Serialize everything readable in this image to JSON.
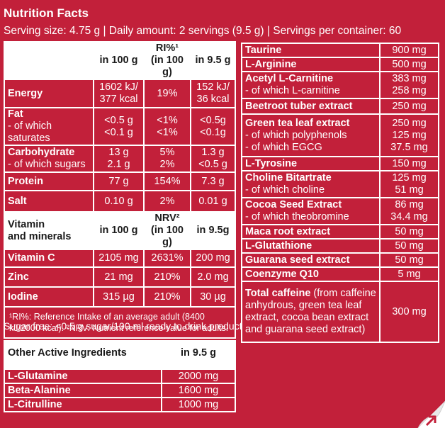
{
  "header": {
    "title": "Nutrition Facts",
    "serving": "Serving size: 4.75 g  |  Daily amount: 2 servings (9.5 g)  |  Servings per container: 60"
  },
  "nutrition": {
    "col_100g": "in 100 g",
    "col_ri": "RI%¹",
    "col_ri_sub": "(in 100 g)",
    "col_95g": "in 9.5 g",
    "rows": [
      {
        "label": "Energy",
        "v100": "1602 kJ/",
        "v100b": "377 kcal",
        "ri": "19%",
        "v95": "152 kJ/",
        "v95b": "36 kcal"
      },
      {
        "label": "Fat",
        "label2": "- of which saturates",
        "v100": "<0.5 g",
        "v100b": "<0.1 g",
        "ri": "<1%",
        "rib": "<1%",
        "v95": "<0.5g",
        "v95b": "<0.1g"
      },
      {
        "label": "Carbohydrate",
        "label2": "- of which sugars",
        "v100": "13 g",
        "v100b": "2.1 g",
        "ri": "5%",
        "rib": "2%",
        "v95": "1.3 g",
        "v95b": "<0.5 g"
      },
      {
        "label": "Protein",
        "v100": "77 g",
        "ri": "154%",
        "v95": "7.3 g"
      },
      {
        "label": "Salt",
        "v100": "0.10 g",
        "ri": "2%",
        "v95": "0.01 g"
      }
    ]
  },
  "vitamins": {
    "label": "Vitamin",
    "label2": "and minerals",
    "col_100g": "in 100 g",
    "col_nrv": "NRV²",
    "col_nrv_sub": "(in 100 g)",
    "col_95g": "in 9.5g",
    "rows": [
      {
        "label": "Vitamin C",
        "v100": "2105 mg",
        "nrv": "2631%",
        "v95": "200 mg"
      },
      {
        "label": "Zinc",
        "v100": "21 mg",
        "nrv": "210%",
        "v95": "2.0 mg"
      },
      {
        "label": "Iodine",
        "v100": "315 µg",
        "nrv": "210%",
        "v95": "30 µg"
      }
    ]
  },
  "footnote": "¹RI%: Reference Intake of an average adult (8400 kJ/2000 kcal). ²NRV: Nutrient reference value for adults.",
  "sugar_free": "Sugar free: <0.5 g sugar/100 ml ready to drink product.",
  "other": {
    "title": "Other Active Ingredients",
    "col": "in 9.5 g",
    "rows": [
      {
        "label": "L-Glutamine",
        "value": "2000 mg"
      },
      {
        "label": "Beta-Alanine",
        "value": "1600 mg"
      },
      {
        "label": "L-Citrulline",
        "value": "1000 mg"
      }
    ]
  },
  "right": {
    "rows": [
      {
        "label": "Taurine",
        "value": "900 mg"
      },
      {
        "label": "L-Arginine",
        "value": "500 mg"
      },
      {
        "label": "Acetyl L-Carnitine",
        "value": "383 mg",
        "subs": [
          {
            "label": "- of which L-carnitine",
            "value": "258 mg"
          }
        ]
      },
      {
        "label": "Beetroot tuber extract",
        "value": "250 mg"
      },
      {
        "label": "Green tea leaf extract",
        "value": "250 mg",
        "subs": [
          {
            "label": "- of which polyphenols",
            "value": "125 mg"
          },
          {
            "label": "- of which EGCG",
            "value": "37.5 mg"
          }
        ]
      },
      {
        "label": "L-Tyrosine",
        "value": "150 mg"
      },
      {
        "label": "Choline Bitartrate",
        "value": "125 mg",
        "subs": [
          {
            "label": "- of which choline",
            "value": "51 mg"
          }
        ]
      },
      {
        "label": "Cocoa Seed Extract",
        "value": "86 mg",
        "subs": [
          {
            "label": "- of which theobromine",
            "value": "34.4 mg"
          }
        ]
      },
      {
        "label": "Maca root extract",
        "value": "50 mg"
      },
      {
        "label": "L-Glutathione",
        "value": "50 mg"
      },
      {
        "label": "Guarana seed extract",
        "value": "50 mg"
      },
      {
        "label": "Coenzyme Q10",
        "value": "5 mg"
      }
    ],
    "caffeine_label": "Total caffeine",
    "caffeine_desc": "(from caffeine anhydrous, green tea leaf extract, cocoa bean extract and guarana seed extract)",
    "caffeine_value": "300 mg"
  },
  "corner_icon": "page-curl-arrow-icon",
  "colors": {
    "background": "#c2203a",
    "panel": "#ffffff"
  }
}
